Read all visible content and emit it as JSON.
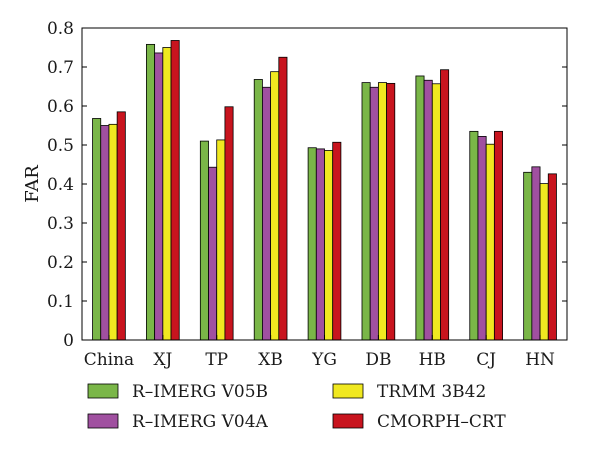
{
  "chart_data": {
    "type": "bar",
    "ylabel": "FAR",
    "xlabel": "",
    "ylim": [
      0,
      0.8
    ],
    "yticks": [
      "0",
      "0.1",
      "0.2",
      "0.3",
      "0.4",
      "0.5",
      "0.6",
      "0.7",
      "0.8"
    ],
    "grid": false,
    "legend_position": "bottom",
    "categories": [
      "China",
      "XJ",
      "TP",
      "XB",
      "YG",
      "DB",
      "HB",
      "CJ",
      "HN"
    ],
    "series": [
      {
        "name": "R–IMERG V05B",
        "color": "#7ab648",
        "values": [
          0.568,
          0.758,
          0.51,
          0.668,
          0.493,
          0.66,
          0.677,
          0.535,
          0.43
        ]
      },
      {
        "name": "R–IMERG V04A",
        "color": "#a050a0",
        "values": [
          0.55,
          0.736,
          0.443,
          0.648,
          0.49,
          0.648,
          0.666,
          0.522,
          0.444
        ]
      },
      {
        "name": "TRMM 3B42",
        "color": "#f0e820",
        "values": [
          0.553,
          0.75,
          0.513,
          0.688,
          0.486,
          0.66,
          0.657,
          0.502,
          0.401
        ]
      },
      {
        "name": "CMORPH–CRT",
        "color": "#c8141e",
        "values": [
          0.585,
          0.768,
          0.598,
          0.725,
          0.507,
          0.658,
          0.693,
          0.535,
          0.426
        ]
      }
    ]
  }
}
